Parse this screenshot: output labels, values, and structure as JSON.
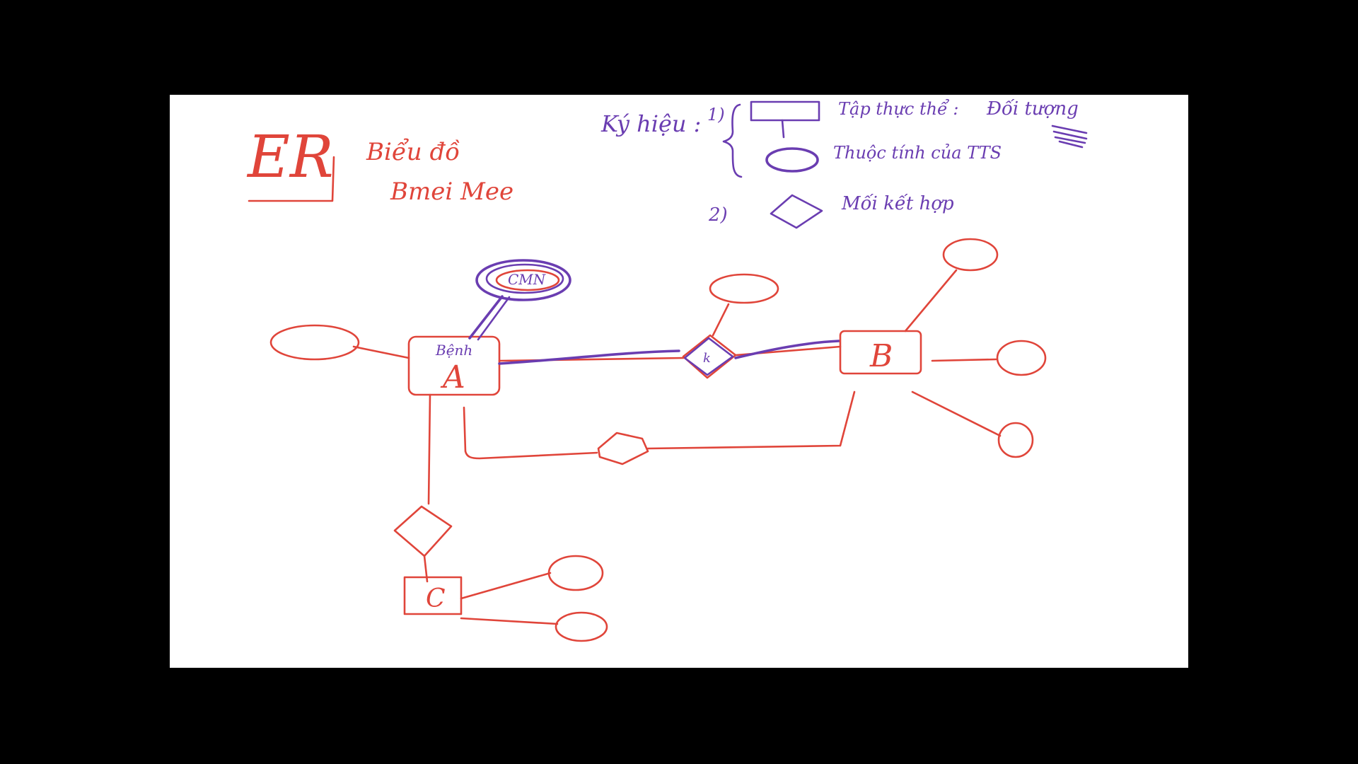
{
  "colors": {
    "background": "#000000",
    "board": "#ffffff",
    "ink_red": "#e0453a",
    "ink_purple": "#6a3db1"
  },
  "title": {
    "er": "ER",
    "line1": "Biểu đồ",
    "line2": "Bmei Mee"
  },
  "legend": {
    "heading": "Ký hiệu :",
    "item1_number": "1)",
    "entity_set": "Tập thực thể :",
    "entity_object": "Đối tượng",
    "attribute": "Thuộc tính của TTS",
    "item2_number": "2)",
    "relationship": "Mối kết hợp"
  },
  "diagram": {
    "entity_a": "A",
    "entity_a_note": "Bệnh",
    "entity_b": "B",
    "entity_c": "C",
    "attribute_top": "CMN",
    "relationship_label": "k"
  }
}
